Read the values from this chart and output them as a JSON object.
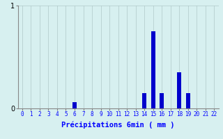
{
  "title": "",
  "xlabel": "Précipitations 6min ( mm )",
  "ylabel": "",
  "background_color": "#d7f0f0",
  "bar_color": "#0000cc",
  "grid_color": "#b0c8c8",
  "xtick_labels": [
    "0",
    "1",
    "2",
    "3",
    "4",
    "5",
    "6",
    "7",
    "8",
    "9",
    "10",
    "11",
    "12",
    "13",
    "14",
    "15",
    "16",
    "17",
    "18",
    "19",
    "20",
    "21",
    "22"
  ],
  "values": [
    0,
    0,
    0,
    0,
    0,
    0,
    0.06,
    0,
    0,
    0,
    0,
    0,
    0,
    0,
    0.15,
    0.75,
    0.15,
    0,
    0.35,
    0.15,
    0,
    0,
    0
  ],
  "ylim": [
    0,
    1.0
  ],
  "yticks": [
    0,
    1
  ],
  "figsize": [
    3.2,
    2.0
  ],
  "dpi": 100
}
